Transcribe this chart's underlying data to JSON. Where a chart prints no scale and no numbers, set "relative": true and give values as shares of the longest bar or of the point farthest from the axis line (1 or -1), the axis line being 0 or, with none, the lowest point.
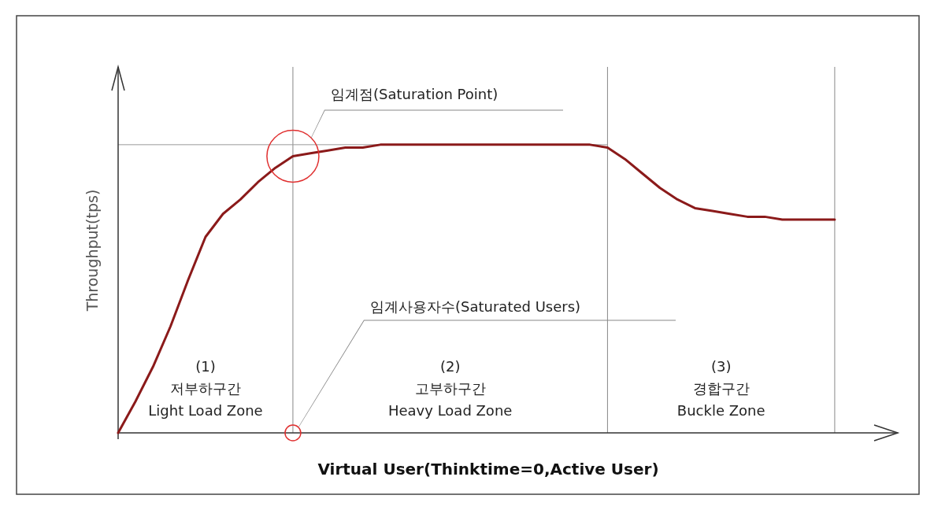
{
  "chart_data": {
    "type": "line",
    "relative": true,
    "xlabel": "Virtual User(Thinktime=0,Active User)",
    "ylabel": "Throughput(tps)",
    "categories": [
      null,
      null,
      null,
      null,
      null,
      null,
      null,
      null,
      null,
      null,
      null,
      null,
      null,
      null,
      null,
      null,
      null,
      null,
      null,
      null,
      null,
      null,
      null,
      null,
      null,
      null,
      null,
      null,
      null,
      null,
      null,
      null,
      null,
      null,
      null,
      null,
      null,
      null,
      null,
      null,
      null,
      null
    ],
    "series": [
      {
        "color": "#8b1a1a",
        "values": [
          0,
          0.11,
          0.23,
          0.37,
          0.53,
          0.68,
          0.76,
          0.81,
          0.87,
          0.92,
          0.96,
          0.97,
          0.98,
          0.99,
          0.99,
          1.0,
          1.0,
          1.0,
          1.0,
          1.0,
          1.0,
          1.0,
          1.0,
          1.0,
          1.0,
          1.0,
          1.0,
          1.0,
          0.99,
          0.95,
          0.9,
          0.85,
          0.81,
          0.78,
          0.77,
          0.76,
          0.75,
          0.75,
          0.74,
          0.74,
          0.74,
          0.74
        ]
      }
    ],
    "ref_lines": [
      {
        "axis": "y",
        "value": 1.0,
        "color": "#999999"
      }
    ],
    "annotations": [
      "임계점(Saturation Point)",
      "임계사용자수(Saturated Users)",
      "(1)\n저부하구간\nLight Load Zone",
      "(2)\n고부하구간\nHeavy Load Zone",
      "(3)\n경합구간\nBuckle Zone"
    ],
    "marker": "none",
    "line_style": "solid",
    "grid": "x"
  }
}
